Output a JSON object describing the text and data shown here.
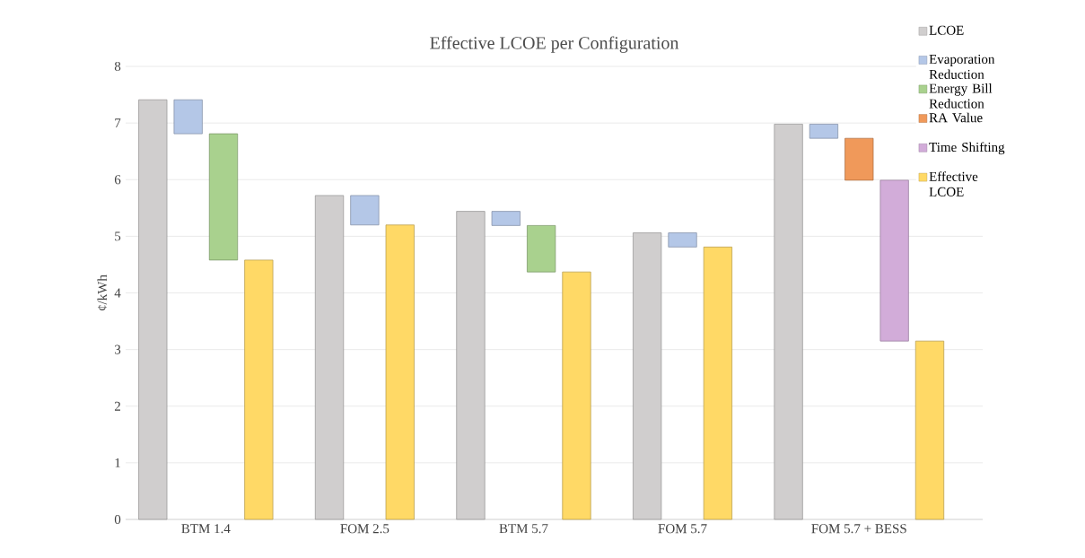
{
  "chart_data": {
    "type": "bar",
    "title": "Effective LCOE per Configuration",
    "ylabel": "¢/kWh",
    "categories": [
      "BTM 1.4",
      "FOM 2.5",
      "BTM 5.7",
      "FOM 5.7",
      "FOM 5.7 + BESS"
    ],
    "series": [
      {
        "name": "LCOE",
        "color": "#d0cece",
        "values": [
          7.41,
          5.72,
          5.44,
          5.06,
          6.98
        ]
      },
      {
        "name": "Evaporation Reduction",
        "color": "#b4c7e7",
        "values": [
          0.6,
          0.52,
          0.25,
          0.25,
          0.25
        ],
        "base": [
          6.81,
          5.2,
          5.19,
          4.81,
          6.73
        ]
      },
      {
        "name": "Energy Bill Reduction",
        "color": "#a9d18e",
        "values": [
          2.23,
          null,
          0.82,
          null,
          null
        ],
        "base": [
          4.58,
          null,
          4.37,
          null,
          null
        ]
      },
      {
        "name": "RA Value",
        "color": "#f0995a",
        "values": [
          null,
          null,
          null,
          null,
          0.74
        ],
        "base": [
          null,
          null,
          null,
          null,
          5.99
        ]
      },
      {
        "name": "Time Shifting",
        "color": "#d2acd9",
        "values": [
          null,
          null,
          null,
          null,
          2.84
        ],
        "base": [
          null,
          null,
          null,
          null,
          3.15
        ]
      },
      {
        "name": "Effective LCOE",
        "color": "#ffd966",
        "values": [
          4.58,
          5.2,
          4.37,
          4.81,
          3.15
        ]
      }
    ],
    "ylim": [
      0,
      8
    ],
    "yticks": [
      0,
      1,
      2,
      3,
      4,
      5,
      6,
      7,
      8
    ],
    "grid": "y",
    "legend": "right"
  }
}
